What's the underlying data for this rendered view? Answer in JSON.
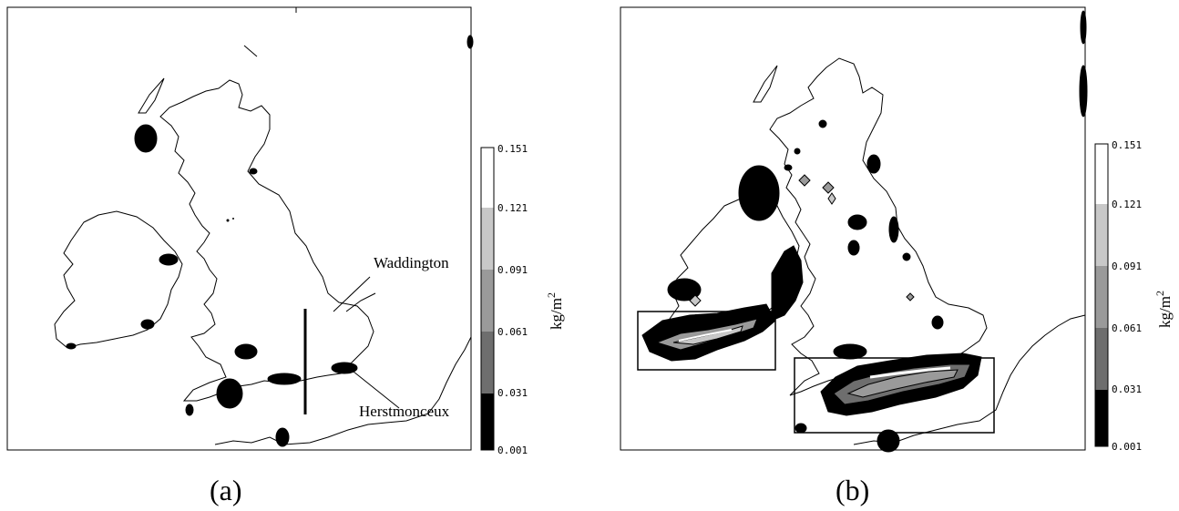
{
  "figure": {
    "panels": [
      {
        "id": "a",
        "caption": "(a)",
        "annotations": [
          "Waddington",
          "Herstmonceux"
        ]
      },
      {
        "id": "b",
        "caption": "(b)",
        "annotations": []
      }
    ]
  },
  "colorbar": {
    "unit_label": "kg/m",
    "unit_superscript": "2",
    "ticks": [
      "0.001",
      "0.031",
      "0.061",
      "0.091",
      "0.121",
      "0.151"
    ],
    "band_colors": [
      "#000000",
      "#6e6e6e",
      "#9a9a9a",
      "#c8c8c8",
      "#ffffff"
    ]
  },
  "colors": {
    "coastline": "#000000",
    "frame": "#000000",
    "cloud_edge": "#1a1a1a"
  }
}
